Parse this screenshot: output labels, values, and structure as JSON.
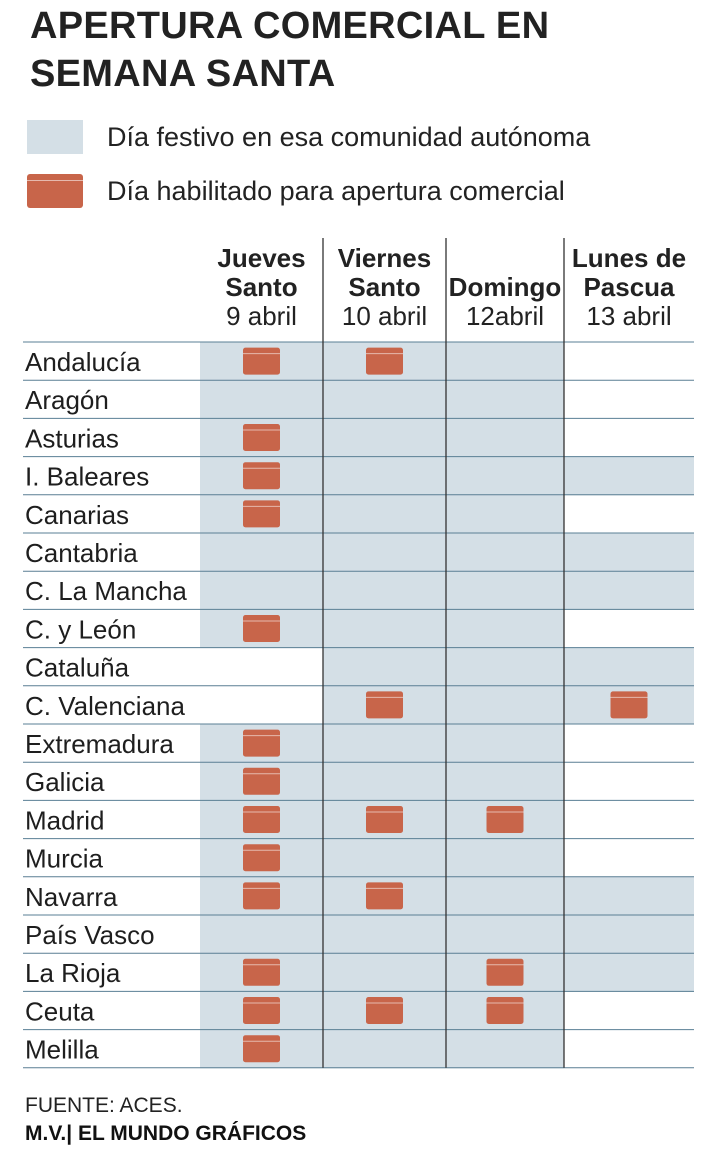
{
  "title": "APERTURA COMERCIAL EN SEMANA SANTA",
  "legend": [
    {
      "label": "Día festivo en esa comunidad autónoma",
      "color": "#d4dfe6"
    },
    {
      "label": "Día habilitado para apertura comercial",
      "color": "#c8654a"
    }
  ],
  "columns": [
    {
      "line1": "Jueves",
      "line2": "Santo",
      "line3": "9 abril"
    },
    {
      "line1": "Viernes",
      "line2": "Santo",
      "line3": "10 abril"
    },
    {
      "line1": "",
      "line2": "Domingo",
      "line3": "12abril"
    },
    {
      "line1": "Lunes de",
      "line2": "Pascua",
      "line3": "13 abril"
    }
  ],
  "chart_data": {
    "type": "table",
    "title": "APERTURA COMERCIAL EN SEMANA SANTA",
    "columns": [
      "Jueves Santo 9 abril",
      "Viernes Santo 10 abril",
      "Domingo 12abril",
      "Lunes de Pascua 13 abril"
    ],
    "legend": [
      "Día festivo en esa comunidad autónoma",
      "Día habilitado para apertura comercial"
    ],
    "rows": [
      {
        "region": "Andalucía",
        "festivo": [
          true,
          true,
          true,
          false
        ],
        "apertura": [
          true,
          true,
          false,
          false
        ]
      },
      {
        "region": "Aragón",
        "festivo": [
          true,
          true,
          true,
          false
        ],
        "apertura": [
          false,
          false,
          false,
          false
        ]
      },
      {
        "region": "Asturias",
        "festivo": [
          true,
          true,
          true,
          false
        ],
        "apertura": [
          true,
          false,
          false,
          false
        ]
      },
      {
        "region": "I. Baleares",
        "festivo": [
          true,
          true,
          true,
          true
        ],
        "apertura": [
          true,
          false,
          false,
          false
        ]
      },
      {
        "region": "Canarias",
        "festivo": [
          true,
          true,
          true,
          false
        ],
        "apertura": [
          true,
          false,
          false,
          false
        ]
      },
      {
        "region": "Cantabria",
        "festivo": [
          true,
          true,
          true,
          true
        ],
        "apertura": [
          false,
          false,
          false,
          false
        ]
      },
      {
        "region": "C. La Mancha",
        "festivo": [
          true,
          true,
          true,
          true
        ],
        "apertura": [
          false,
          false,
          false,
          false
        ]
      },
      {
        "region": "C. y León",
        "festivo": [
          true,
          true,
          true,
          false
        ],
        "apertura": [
          true,
          false,
          false,
          false
        ]
      },
      {
        "region": "Cataluña",
        "festivo": [
          false,
          true,
          true,
          true
        ],
        "apertura": [
          false,
          false,
          false,
          false
        ]
      },
      {
        "region": "C. Valenciana",
        "festivo": [
          false,
          true,
          true,
          true
        ],
        "apertura": [
          false,
          true,
          false,
          true
        ]
      },
      {
        "region": "Extremadura",
        "festivo": [
          true,
          true,
          true,
          false
        ],
        "apertura": [
          true,
          false,
          false,
          false
        ]
      },
      {
        "region": "Galicia",
        "festivo": [
          true,
          true,
          true,
          false
        ],
        "apertura": [
          true,
          false,
          false,
          false
        ]
      },
      {
        "region": "Madrid",
        "festivo": [
          true,
          true,
          true,
          false
        ],
        "apertura": [
          true,
          true,
          true,
          false
        ]
      },
      {
        "region": "Murcia",
        "festivo": [
          true,
          true,
          true,
          false
        ],
        "apertura": [
          true,
          false,
          false,
          false
        ]
      },
      {
        "region": "Navarra",
        "festivo": [
          true,
          true,
          true,
          true
        ],
        "apertura": [
          true,
          true,
          false,
          false
        ]
      },
      {
        "region": "País Vasco",
        "festivo": [
          true,
          true,
          true,
          true
        ],
        "apertura": [
          false,
          false,
          false,
          false
        ]
      },
      {
        "region": "La Rioja",
        "festivo": [
          true,
          true,
          true,
          true
        ],
        "apertura": [
          true,
          false,
          true,
          false
        ]
      },
      {
        "region": "Ceuta",
        "festivo": [
          true,
          true,
          true,
          false
        ],
        "apertura": [
          true,
          true,
          true,
          false
        ]
      },
      {
        "region": "Melilla",
        "festivo": [
          true,
          true,
          true,
          false
        ],
        "apertura": [
          true,
          false,
          false,
          false
        ]
      }
    ]
  },
  "footer": {
    "source": "FUENTE: ACES.",
    "credit": "M.V.| EL MUNDO GRÁFICOS"
  }
}
